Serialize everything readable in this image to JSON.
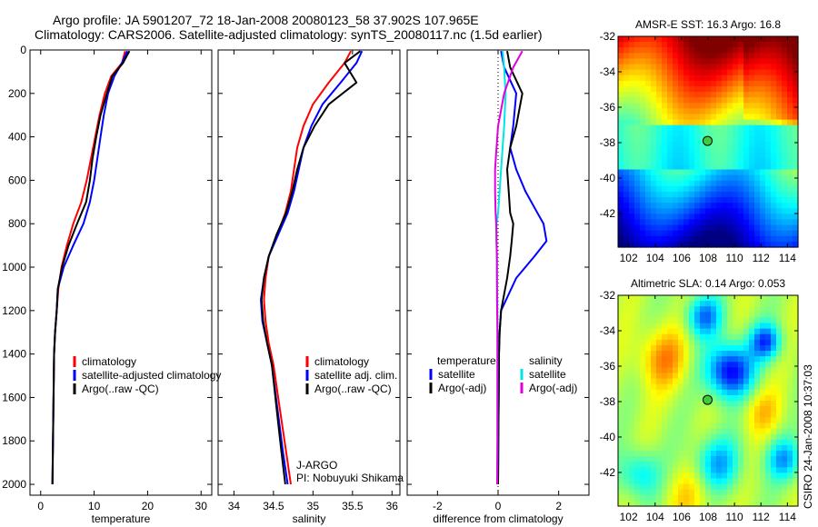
{
  "header": {
    "line1": "Argo profile: JA 5901207_72 18-Jan-2008 20080123_58 37.902S 107.965E",
    "line2": "Climatology: CARS2006. Satellite-adjusted climatology: synTS_20080117.nc (1.5d earlier)"
  },
  "credit": "CSIRO 24-Jan-2008 10:37:03",
  "colors": {
    "red": "#ff0000",
    "blue": "#0000ff",
    "black": "#000000",
    "cyan": "#00e5e5",
    "magenta": "#e000e0"
  },
  "chart_data": [
    {
      "type": "line",
      "xlabel": "temperature",
      "xlim": [
        -2,
        32
      ],
      "xticks": [
        "0",
        "10",
        "20",
        "30"
      ],
      "xtick_values": [
        0,
        10,
        20,
        30
      ],
      "ylim": [
        0,
        2050
      ],
      "yticks": [
        "0",
        "200",
        "400",
        "600",
        "800",
        "1000",
        "1200",
        "1400",
        "1600",
        "1800",
        "2000"
      ],
      "ytick_values": [
        0,
        200,
        400,
        600,
        800,
        1000,
        1200,
        1400,
        1600,
        1800,
        2000
      ],
      "y_reversed": true,
      "legend": {
        "position": "lower-right",
        "entries": [
          "climatology",
          "satellite-adjusted climatology",
          "Argo(..raw -QC)"
        ]
      },
      "series": [
        {
          "name": "climatology",
          "color": "red",
          "x": [
            15.8,
            15.2,
            13.2,
            12.0,
            11.0,
            10.2,
            9.4,
            8.6,
            7.6,
            6.1,
            4.9,
            3.9,
            3.3,
            3.0,
            2.7,
            2.5,
            2.4,
            2.3,
            2.2
          ],
          "y": [
            5,
            60,
            120,
            200,
            300,
            400,
            500,
            600,
            700,
            800,
            900,
            1000,
            1100,
            1200,
            1300,
            1400,
            1600,
            1800,
            2000
          ]
        },
        {
          "name": "satellite-adjusted climatology",
          "color": "blue",
          "x": [
            16.2,
            15.2,
            13.8,
            12.6,
            11.8,
            11.2,
            10.6,
            10.0,
            9.2,
            8.0,
            6.1,
            4.3,
            3.2,
            3.0,
            2.7,
            2.5,
            2.4,
            2.3,
            2.2
          ],
          "y": [
            5,
            60,
            120,
            200,
            300,
            400,
            500,
            600,
            700,
            800,
            900,
            1000,
            1100,
            1200,
            1300,
            1400,
            1600,
            1800,
            2000
          ]
        },
        {
          "name": "Argo(..raw -QC)",
          "color": "black",
          "x": [
            16.6,
            15.4,
            13.4,
            12.4,
            11.2,
            10.4,
            9.7,
            9.2,
            8.5,
            6.8,
            5.2,
            4.0,
            3.2,
            3.0,
            2.7,
            2.5,
            2.4,
            2.3,
            2.2
          ],
          "y": [
            5,
            60,
            120,
            200,
            300,
            400,
            500,
            600,
            700,
            800,
            900,
            1000,
            1100,
            1200,
            1300,
            1400,
            1600,
            1800,
            2000
          ]
        }
      ]
    },
    {
      "type": "line",
      "xlabel": "salinity",
      "xlim": [
        33.8,
        36.1
      ],
      "xticks": [
        "34",
        "34.5",
        "35",
        "35.5",
        "36"
      ],
      "xtick_values": [
        34,
        34.5,
        35,
        35.5,
        36
      ],
      "ylim": [
        0,
        2050
      ],
      "y_reversed": true,
      "legend": {
        "position": "lower-right",
        "entries": [
          "climatology",
          "satellite adj. clim.",
          "Argo(..raw -QC)"
        ]
      },
      "annotation": [
        "J-ARGO",
        "PI: Nobuyuki Shikama"
      ],
      "series": [
        {
          "name": "climatology",
          "color": "red",
          "x": [
            35.48,
            35.4,
            35.2,
            35.0,
            34.88,
            34.8,
            34.76,
            34.72,
            34.65,
            34.55,
            34.44,
            34.4,
            34.38,
            34.4,
            34.44,
            34.5,
            34.58,
            34.66,
            34.72
          ],
          "y": [
            5,
            60,
            150,
            250,
            350,
            450,
            550,
            650,
            750,
            850,
            950,
            1050,
            1150,
            1250,
            1350,
            1450,
            1650,
            1850,
            2000
          ]
        },
        {
          "name": "satellite adj. clim.",
          "color": "blue",
          "x": [
            35.62,
            35.55,
            35.35,
            35.12,
            34.98,
            34.88,
            34.82,
            34.76,
            34.68,
            34.56,
            34.44,
            34.38,
            34.34,
            34.36,
            34.42,
            34.48,
            34.55,
            34.62,
            34.68
          ],
          "y": [
            5,
            60,
            150,
            250,
            350,
            450,
            550,
            650,
            750,
            850,
            950,
            1050,
            1150,
            1250,
            1350,
            1450,
            1650,
            1850,
            2000
          ]
        },
        {
          "name": "Argo(..raw -QC)",
          "color": "black",
          "x": [
            35.6,
            35.4,
            35.55,
            35.2,
            35.02,
            34.88,
            34.8,
            34.74,
            34.66,
            34.54,
            34.44,
            34.38,
            34.35,
            34.37,
            34.42,
            34.48,
            34.54,
            34.6,
            34.65
          ],
          "y": [
            5,
            60,
            150,
            250,
            350,
            450,
            550,
            650,
            750,
            850,
            950,
            1050,
            1150,
            1250,
            1350,
            1450,
            1650,
            1850,
            2000
          ]
        }
      ]
    },
    {
      "type": "line",
      "xlabel": "difference from climatology",
      "xlim": [
        -3.0,
        3.0
      ],
      "xticks": [
        "-2",
        "0",
        "2"
      ],
      "xtick_values": [
        -2,
        0,
        2
      ],
      "ylim": [
        0,
        2050
      ],
      "y_reversed": true,
      "zero_line": true,
      "legend": {
        "position": "lower-center",
        "headers": [
          "temperature",
          "salinity"
        ],
        "entries": [
          "satellite",
          "Argo(-adj)",
          "satellite",
          "Argo(-adj)"
        ]
      },
      "series": [
        {
          "name": "satellite",
          "group": "temperature",
          "color": "blue",
          "x": [
            0.1,
            0.2,
            0.6,
            0.5,
            0.4,
            0.6,
            0.9,
            1.3,
            1.5,
            1.6,
            1.2,
            0.6,
            0.1,
            0.05,
            0.03,
            0.02,
            0.01,
            0.0
          ],
          "y": [
            5,
            80,
            200,
            350,
            450,
            550,
            650,
            750,
            800,
            880,
            950,
            1050,
            1200,
            1300,
            1400,
            1600,
            1800,
            2000
          ]
        },
        {
          "name": "Argo(-adj)",
          "group": "temperature",
          "color": "black",
          "x": [
            0.3,
            0.4,
            0.8,
            0.6,
            0.4,
            0.3,
            0.35,
            0.4,
            0.5,
            0.45,
            0.4,
            0.3,
            0.1,
            0.05,
            0.03,
            0.02,
            0.01,
            0.0
          ],
          "y": [
            5,
            80,
            200,
            350,
            450,
            550,
            650,
            750,
            800,
            880,
            950,
            1050,
            1200,
            1300,
            1400,
            1600,
            1800,
            2000
          ]
        },
        {
          "name": "satellite",
          "group": "salinity",
          "color": "cyan",
          "x": [
            0.15,
            0.2,
            0.25,
            0.2,
            0.15,
            0.1,
            0.05,
            0.0,
            -0.05,
            -0.05,
            -0.04,
            -0.03,
            -0.02,
            -0.02,
            -0.02,
            -0.02,
            -0.02,
            -0.03
          ],
          "y": [
            5,
            80,
            200,
            350,
            450,
            550,
            650,
            750,
            800,
            880,
            950,
            1050,
            1200,
            1300,
            1400,
            1600,
            1800,
            2000
          ]
        },
        {
          "name": "Argo(-adj)",
          "group": "salinity",
          "color": "magenta",
          "x": [
            0.8,
            0.5,
            0.2,
            0.0,
            -0.05,
            -0.1,
            -0.1,
            -0.08,
            -0.06,
            -0.05,
            -0.04,
            -0.04,
            -0.03,
            -0.02,
            -0.02,
            -0.02,
            -0.02,
            -0.03
          ],
          "y": [
            5,
            80,
            200,
            350,
            450,
            550,
            650,
            750,
            800,
            880,
            950,
            1050,
            1200,
            1300,
            1400,
            1600,
            1800,
            2000
          ]
        }
      ]
    },
    {
      "type": "heatmap",
      "title": "AMSR-E SST: 16.3 Argo: 16.8",
      "xlim": [
        101.2,
        114.8
      ],
      "ylim": [
        -43.9,
        -32
      ],
      "xticks": [
        "102",
        "104",
        "106",
        "108",
        "110",
        "112",
        "114"
      ],
      "xtick_values": [
        102,
        104,
        106,
        108,
        110,
        112,
        114
      ],
      "yticks": [
        "-32",
        "-34",
        "-36",
        "-38",
        "-40",
        "-42"
      ],
      "ytick_values": [
        -32,
        -34,
        -36,
        -38,
        -40,
        -42
      ],
      "marker": {
        "lon": 107.965,
        "lat": -37.902
      }
    },
    {
      "type": "heatmap",
      "title": "Altimetric SLA: 0.14 Argo: 0.053",
      "xlim": [
        101.2,
        114.8
      ],
      "ylim": [
        -43.9,
        -32
      ],
      "xticks": [
        "102",
        "104",
        "106",
        "108",
        "110",
        "112",
        "114"
      ],
      "xtick_values": [
        102,
        104,
        106,
        108,
        110,
        112,
        114
      ],
      "yticks": [
        "-32",
        "-34",
        "-36",
        "-38",
        "-40",
        "-42"
      ],
      "ytick_values": [
        -32,
        -34,
        -36,
        -38,
        -40,
        -42
      ],
      "marker": {
        "lon": 107.965,
        "lat": -37.902
      }
    }
  ]
}
